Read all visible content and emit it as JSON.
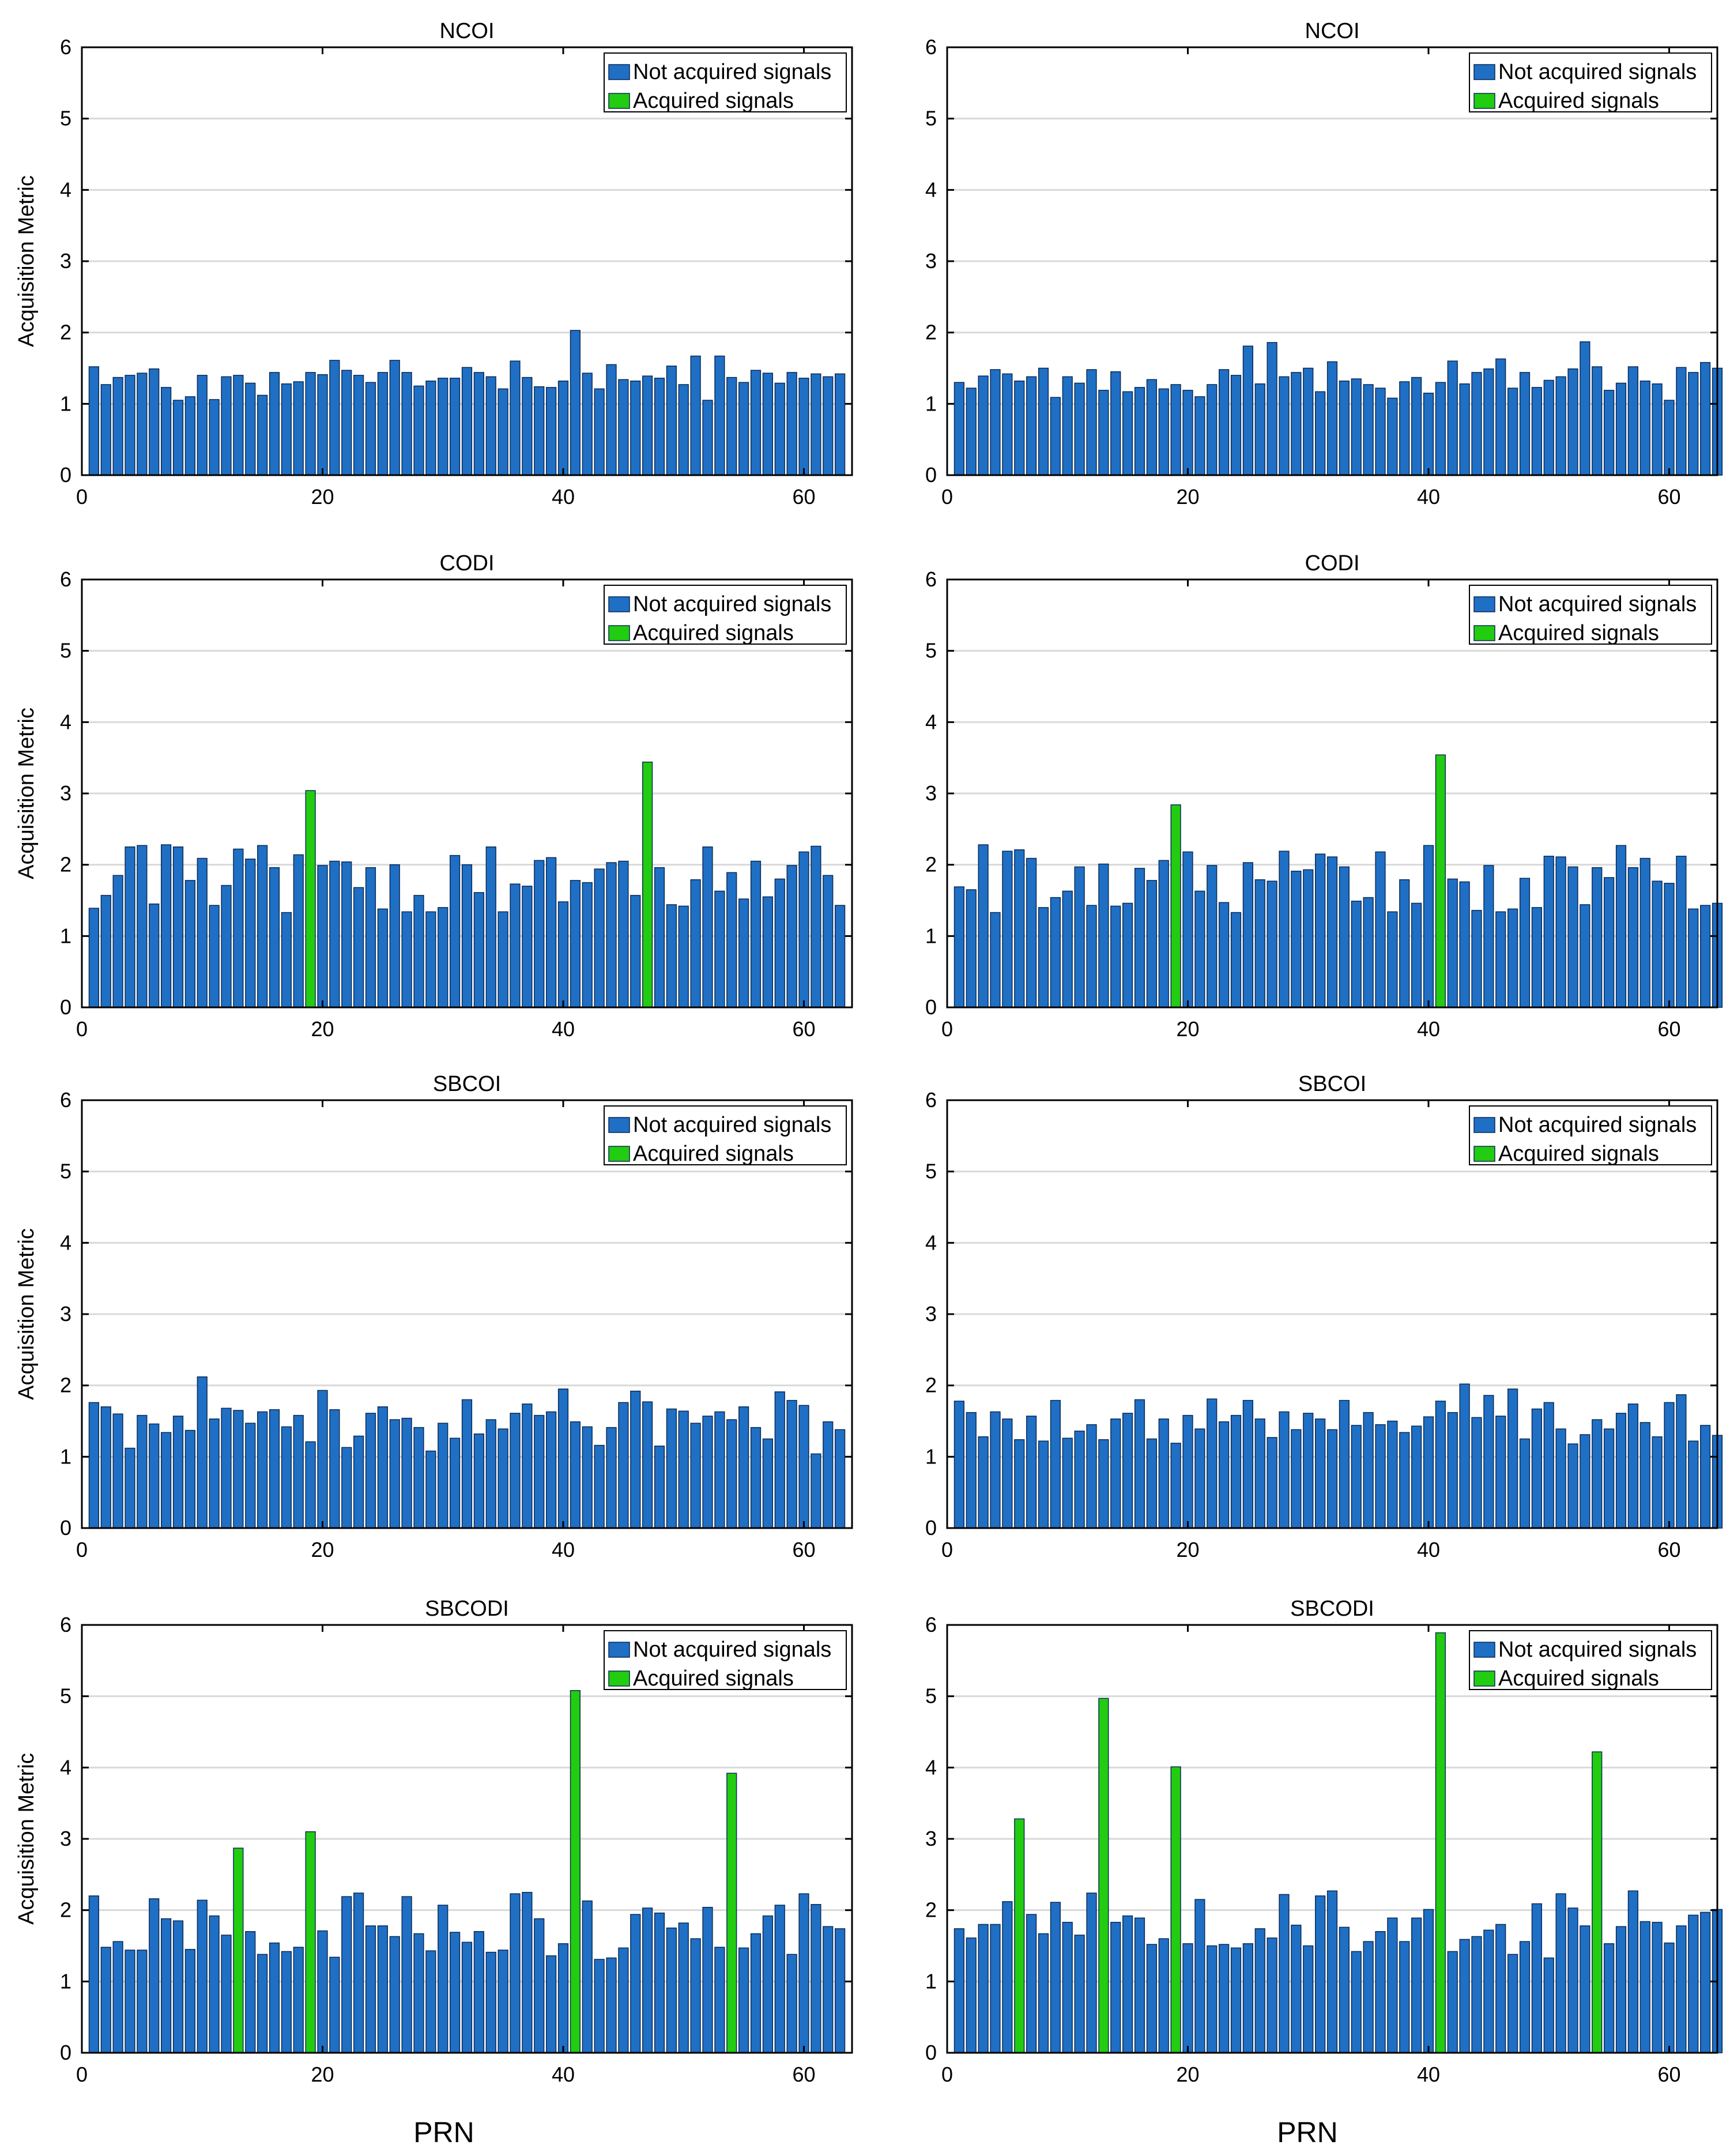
{
  "figure": {
    "xlabel_left": "PRN",
    "xlabel_right": "PRN"
  },
  "colors": {
    "not_acquired": "#1f6fc5",
    "acquired": "#22cc11",
    "bar_edge": "#0a2a55",
    "grid": "#d9d9d9",
    "axis": "#000000"
  },
  "chart_data": [
    {
      "type": "bar",
      "title": "NCOI",
      "ylabel": "Acquisition Metric",
      "xlabel": "",
      "xlim": [
        0,
        64
      ],
      "ylim": [
        0,
        6
      ],
      "xticks": [
        0,
        20,
        40,
        60
      ],
      "yticks": [
        0,
        1,
        2,
        3,
        4,
        5,
        6
      ],
      "grid": true,
      "legend_position": "top-right",
      "legend": [
        "Not acquired signals",
        "Acquired signals"
      ],
      "x": [
        1,
        2,
        3,
        4,
        5,
        6,
        7,
        8,
        9,
        10,
        11,
        12,
        13,
        14,
        15,
        16,
        17,
        18,
        19,
        20,
        21,
        22,
        23,
        24,
        25,
        26,
        27,
        28,
        29,
        30,
        31,
        32,
        33,
        34,
        35,
        36,
        37,
        38,
        39,
        40,
        41,
        42,
        43,
        44,
        45,
        46,
        47,
        48,
        49,
        50,
        51,
        52,
        53,
        54,
        55,
        56,
        57,
        58,
        59,
        60,
        61,
        62,
        63
      ],
      "values": [
        1.52,
        1.27,
        1.37,
        1.4,
        1.43,
        1.49,
        1.23,
        1.05,
        1.1,
        1.4,
        1.06,
        1.38,
        1.4,
        1.29,
        1.12,
        1.44,
        1.28,
        1.31,
        1.44,
        1.41,
        1.61,
        1.47,
        1.4,
        1.3,
        1.44,
        1.61,
        1.44,
        1.25,
        1.32,
        1.36,
        1.36,
        1.51,
        1.44,
        1.38,
        1.21,
        1.6,
        1.37,
        1.24,
        1.23,
        1.32,
        2.03,
        1.43,
        1.21,
        1.55,
        1.34,
        1.32,
        1.39,
        1.36,
        1.53,
        1.27,
        1.67,
        1.05,
        1.67,
        1.37,
        1.3,
        1.47,
        1.43,
        1.29,
        1.44,
        1.36,
        1.42,
        1.38,
        1.42
      ],
      "acquired_prn": []
    },
    {
      "type": "bar",
      "title": "NCOI",
      "ylabel": "",
      "xlabel": "",
      "xlim": [
        0,
        64
      ],
      "ylim": [
        0,
        6
      ],
      "xticks": [
        0,
        20,
        40,
        60
      ],
      "yticks": [
        0,
        1,
        2,
        3,
        4,
        5,
        6
      ],
      "grid": true,
      "legend_position": "top-right",
      "legend": [
        "Not acquired signals",
        "Acquired signals"
      ],
      "x": [
        1,
        2,
        3,
        4,
        5,
        6,
        7,
        8,
        9,
        10,
        11,
        12,
        13,
        14,
        15,
        16,
        17,
        18,
        19,
        20,
        21,
        22,
        23,
        24,
        25,
        26,
        27,
        28,
        29,
        30,
        31,
        32,
        33,
        34,
        35,
        36,
        37,
        38,
        39,
        40,
        41,
        42,
        43,
        44,
        45,
        46,
        47,
        48,
        49,
        50,
        51,
        52,
        53,
        54,
        55,
        56,
        57,
        58,
        59,
        60,
        61,
        62,
        63,
        64
      ],
      "values": [
        1.3,
        1.22,
        1.39,
        1.48,
        1.42,
        1.32,
        1.38,
        1.5,
        1.09,
        1.38,
        1.29,
        1.48,
        1.19,
        1.45,
        1.17,
        1.23,
        1.34,
        1.21,
        1.27,
        1.19,
        1.1,
        1.27,
        1.48,
        1.4,
        1.81,
        1.28,
        1.86,
        1.38,
        1.44,
        1.5,
        1.17,
        1.59,
        1.32,
        1.35,
        1.27,
        1.22,
        1.08,
        1.31,
        1.37,
        1.15,
        1.3,
        1.6,
        1.28,
        1.44,
        1.49,
        1.63,
        1.22,
        1.44,
        1.23,
        1.33,
        1.38,
        1.49,
        1.87,
        1.52,
        1.19,
        1.29,
        1.52,
        1.32,
        1.28,
        1.05,
        1.51,
        1.44,
        1.58,
        1.5
      ],
      "acquired_prn": []
    },
    {
      "type": "bar",
      "title": "CODI",
      "ylabel": "Acquisition Metric",
      "xlabel": "",
      "xlim": [
        0,
        64
      ],
      "ylim": [
        0,
        6
      ],
      "xticks": [
        0,
        20,
        40,
        60
      ],
      "yticks": [
        0,
        1,
        2,
        3,
        4,
        5,
        6
      ],
      "grid": true,
      "legend_position": "top-right",
      "legend": [
        "Not acquired signals",
        "Acquired signals"
      ],
      "x": [
        1,
        2,
        3,
        4,
        5,
        6,
        7,
        8,
        9,
        10,
        11,
        12,
        13,
        14,
        15,
        16,
        17,
        18,
        19,
        20,
        21,
        22,
        23,
        24,
        25,
        26,
        27,
        28,
        29,
        30,
        31,
        32,
        33,
        34,
        35,
        36,
        37,
        38,
        39,
        40,
        41,
        42,
        43,
        44,
        45,
        46,
        47,
        48,
        49,
        50,
        51,
        52,
        53,
        54,
        55,
        56,
        57,
        58,
        59,
        60,
        61,
        62,
        63
      ],
      "values": [
        1.39,
        1.57,
        1.85,
        2.25,
        2.27,
        1.45,
        2.28,
        2.25,
        1.78,
        2.09,
        1.43,
        1.71,
        2.22,
        2.08,
        2.27,
        1.96,
        1.33,
        2.14,
        3.04,
        1.99,
        2.05,
        2.04,
        1.68,
        1.96,
        1.38,
        2.0,
        1.34,
        1.57,
        1.34,
        1.4,
        2.13,
        2.0,
        1.61,
        2.25,
        1.34,
        1.73,
        1.7,
        2.06,
        2.1,
        1.48,
        1.78,
        1.75,
        1.94,
        2.03,
        2.05,
        1.57,
        3.44,
        1.96,
        1.44,
        1.42,
        1.79,
        2.25,
        1.63,
        1.89,
        1.52,
        2.05,
        1.55,
        1.8,
        1.99,
        2.18,
        2.26,
        1.85,
        1.43
      ],
      "acquired_prn": [
        19,
        47
      ]
    },
    {
      "type": "bar",
      "title": "CODI",
      "ylabel": "",
      "xlabel": "",
      "xlim": [
        0,
        64
      ],
      "ylim": [
        0,
        6
      ],
      "xticks": [
        0,
        20,
        40,
        60
      ],
      "yticks": [
        0,
        1,
        2,
        3,
        4,
        5,
        6
      ],
      "grid": true,
      "legend_position": "top-right",
      "legend": [
        "Not acquired signals",
        "Acquired signals"
      ],
      "x": [
        1,
        2,
        3,
        4,
        5,
        6,
        7,
        8,
        9,
        10,
        11,
        12,
        13,
        14,
        15,
        16,
        17,
        18,
        19,
        20,
        21,
        22,
        23,
        24,
        25,
        26,
        27,
        28,
        29,
        30,
        31,
        32,
        33,
        34,
        35,
        36,
        37,
        38,
        39,
        40,
        41,
        42,
        43,
        44,
        45,
        46,
        47,
        48,
        49,
        50,
        51,
        52,
        53,
        54,
        55,
        56,
        57,
        58,
        59,
        60,
        61,
        62,
        63,
        64
      ],
      "values": [
        1.69,
        1.65,
        2.28,
        1.33,
        2.19,
        2.21,
        2.09,
        1.4,
        1.54,
        1.63,
        1.97,
        1.43,
        2.01,
        1.42,
        1.46,
        1.95,
        1.78,
        2.06,
        2.84,
        2.18,
        1.63,
        1.99,
        1.47,
        1.33,
        2.03,
        1.79,
        1.77,
        2.19,
        1.91,
        1.93,
        2.15,
        2.11,
        1.97,
        1.49,
        1.54,
        2.18,
        1.34,
        1.79,
        1.46,
        2.27,
        3.54,
        1.8,
        1.76,
        1.36,
        1.99,
        1.34,
        1.38,
        1.81,
        1.4,
        2.12,
        2.11,
        1.97,
        1.44,
        1.96,
        1.82,
        2.27,
        1.96,
        2.09,
        1.77,
        1.74,
        2.12,
        1.38,
        1.43,
        1.46
      ],
      "acquired_prn": [
        19,
        41
      ]
    },
    {
      "type": "bar",
      "title": "SBCOI",
      "ylabel": "Acquisition Metric",
      "xlabel": "",
      "xlim": [
        0,
        64
      ],
      "ylim": [
        0,
        6
      ],
      "xticks": [
        0,
        20,
        40,
        60
      ],
      "yticks": [
        0,
        1,
        2,
        3,
        4,
        5,
        6
      ],
      "grid": true,
      "legend_position": "top-right",
      "legend": [
        "Not acquired signals",
        "Acquired signals"
      ],
      "x": [
        1,
        2,
        3,
        4,
        5,
        6,
        7,
        8,
        9,
        10,
        11,
        12,
        13,
        14,
        15,
        16,
        17,
        18,
        19,
        20,
        21,
        22,
        23,
        24,
        25,
        26,
        27,
        28,
        29,
        30,
        31,
        32,
        33,
        34,
        35,
        36,
        37,
        38,
        39,
        40,
        41,
        42,
        43,
        44,
        45,
        46,
        47,
        48,
        49,
        50,
        51,
        52,
        53,
        54,
        55,
        56,
        57,
        58,
        59,
        60,
        61,
        62,
        63
      ],
      "values": [
        1.76,
        1.7,
        1.6,
        1.12,
        1.58,
        1.46,
        1.34,
        1.57,
        1.37,
        2.12,
        1.53,
        1.68,
        1.65,
        1.47,
        1.63,
        1.66,
        1.42,
        1.58,
        1.21,
        1.93,
        1.66,
        1.13,
        1.29,
        1.61,
        1.7,
        1.52,
        1.54,
        1.41,
        1.08,
        1.47,
        1.26,
        1.8,
        1.32,
        1.52,
        1.39,
        1.61,
        1.74,
        1.58,
        1.63,
        1.95,
        1.49,
        1.42,
        1.16,
        1.41,
        1.76,
        1.92,
        1.77,
        1.15,
        1.67,
        1.64,
        1.47,
        1.57,
        1.63,
        1.52,
        1.7,
        1.41,
        1.25,
        1.91,
        1.79,
        1.72,
        1.04,
        1.49,
        1.38
      ],
      "acquired_prn": []
    },
    {
      "type": "bar",
      "title": "SBCOI",
      "ylabel": "",
      "xlabel": "",
      "xlim": [
        0,
        64
      ],
      "ylim": [
        0,
        6
      ],
      "xticks": [
        0,
        20,
        40,
        60
      ],
      "yticks": [
        0,
        1,
        2,
        3,
        4,
        5,
        6
      ],
      "grid": true,
      "legend_position": "top-right",
      "legend": [
        "Not acquired signals",
        "Acquired signals"
      ],
      "x": [
        1,
        2,
        3,
        4,
        5,
        6,
        7,
        8,
        9,
        10,
        11,
        12,
        13,
        14,
        15,
        16,
        17,
        18,
        19,
        20,
        21,
        22,
        23,
        24,
        25,
        26,
        27,
        28,
        29,
        30,
        31,
        32,
        33,
        34,
        35,
        36,
        37,
        38,
        39,
        40,
        41,
        42,
        43,
        44,
        45,
        46,
        47,
        48,
        49,
        50,
        51,
        52,
        53,
        54,
        55,
        56,
        57,
        58,
        59,
        60,
        61,
        62,
        63,
        64
      ],
      "values": [
        1.78,
        1.62,
        1.28,
        1.63,
        1.53,
        1.24,
        1.57,
        1.22,
        1.79,
        1.26,
        1.36,
        1.45,
        1.24,
        1.53,
        1.61,
        1.8,
        1.25,
        1.53,
        1.19,
        1.58,
        1.39,
        1.81,
        1.49,
        1.58,
        1.79,
        1.53,
        1.27,
        1.63,
        1.38,
        1.61,
        1.53,
        1.38,
        1.79,
        1.44,
        1.62,
        1.45,
        1.5,
        1.34,
        1.43,
        1.56,
        1.78,
        1.62,
        2.02,
        1.55,
        1.86,
        1.57,
        1.95,
        1.25,
        1.67,
        1.76,
        1.39,
        1.18,
        1.31,
        1.52,
        1.39,
        1.61,
        1.74,
        1.48,
        1.28,
        1.76,
        1.87,
        1.22,
        1.44,
        1.3
      ],
      "acquired_prn": []
    },
    {
      "type": "bar",
      "title": "SBCODI",
      "ylabel": "Acquisition Metric",
      "xlabel": "",
      "xlim": [
        0,
        64
      ],
      "ylim": [
        0,
        6
      ],
      "xticks": [
        0,
        20,
        40,
        60
      ],
      "yticks": [
        0,
        1,
        2,
        3,
        4,
        5,
        6
      ],
      "grid": true,
      "legend_position": "top-right",
      "legend": [
        "Not acquired signals",
        "Acquired signals"
      ],
      "x": [
        1,
        2,
        3,
        4,
        5,
        6,
        7,
        8,
        9,
        10,
        11,
        12,
        13,
        14,
        15,
        16,
        17,
        18,
        19,
        20,
        21,
        22,
        23,
        24,
        25,
        26,
        27,
        28,
        29,
        30,
        31,
        32,
        33,
        34,
        35,
        36,
        37,
        38,
        39,
        40,
        41,
        42,
        43,
        44,
        45,
        46,
        47,
        48,
        49,
        50,
        51,
        52,
        53,
        54,
        55,
        56,
        57,
        58,
        59,
        60,
        61,
        62,
        63
      ],
      "values": [
        2.2,
        1.48,
        1.56,
        1.44,
        1.44,
        2.16,
        1.88,
        1.85,
        1.45,
        2.14,
        1.92,
        1.65,
        2.87,
        1.7,
        1.38,
        1.54,
        1.42,
        1.48,
        3.1,
        1.71,
        1.34,
        2.19,
        2.24,
        1.78,
        1.78,
        1.63,
        2.19,
        1.67,
        1.43,
        2.07,
        1.69,
        1.55,
        1.7,
        1.41,
        1.44,
        2.23,
        2.25,
        1.88,
        1.36,
        1.53,
        5.08,
        2.13,
        1.31,
        1.33,
        1.47,
        1.94,
        2.03,
        1.96,
        1.75,
        1.82,
        1.6,
        2.04,
        1.48,
        3.92,
        1.47,
        1.67,
        1.92,
        2.07,
        1.38,
        2.23,
        2.08,
        1.77,
        1.74
      ],
      "acquired_prn": [
        13,
        19,
        41,
        54
      ]
    },
    {
      "type": "bar",
      "title": "SBCODI",
      "ylabel": "",
      "xlabel": "",
      "xlim": [
        0,
        64
      ],
      "ylim": [
        0,
        6
      ],
      "xticks": [
        0,
        20,
        40,
        60
      ],
      "yticks": [
        0,
        1,
        2,
        3,
        4,
        5,
        6
      ],
      "grid": true,
      "legend_position": "top-right",
      "legend": [
        "Not acquired signals",
        "Acquired signals"
      ],
      "x": [
        1,
        2,
        3,
        4,
        5,
        6,
        7,
        8,
        9,
        10,
        11,
        12,
        13,
        14,
        15,
        16,
        17,
        18,
        19,
        20,
        21,
        22,
        23,
        24,
        25,
        26,
        27,
        28,
        29,
        30,
        31,
        32,
        33,
        34,
        35,
        36,
        37,
        38,
        39,
        40,
        41,
        42,
        43,
        44,
        45,
        46,
        47,
        48,
        49,
        50,
        51,
        52,
        53,
        54,
        55,
        56,
        57,
        58,
        59,
        60,
        61,
        62,
        63,
        64
      ],
      "values": [
        1.74,
        1.61,
        1.8,
        1.8,
        2.12,
        3.28,
        1.94,
        1.67,
        2.11,
        1.83,
        1.65,
        2.24,
        4.97,
        1.83,
        1.92,
        1.89,
        1.52,
        1.6,
        4.01,
        1.53,
        2.15,
        1.5,
        1.52,
        1.47,
        1.53,
        1.74,
        1.61,
        2.22,
        1.79,
        1.5,
        2.2,
        2.27,
        1.76,
        1.42,
        1.56,
        1.7,
        1.89,
        1.56,
        1.89,
        2.01,
        5.89,
        1.42,
        1.59,
        1.63,
        1.72,
        1.8,
        1.38,
        1.56,
        2.09,
        1.33,
        2.23,
        2.03,
        1.78,
        4.22,
        1.53,
        1.77,
        2.27,
        1.84,
        1.83,
        1.54,
        1.78,
        1.93,
        1.97,
        2.01
      ],
      "acquired_prn": [
        6,
        13,
        19,
        41,
        54
      ]
    }
  ]
}
